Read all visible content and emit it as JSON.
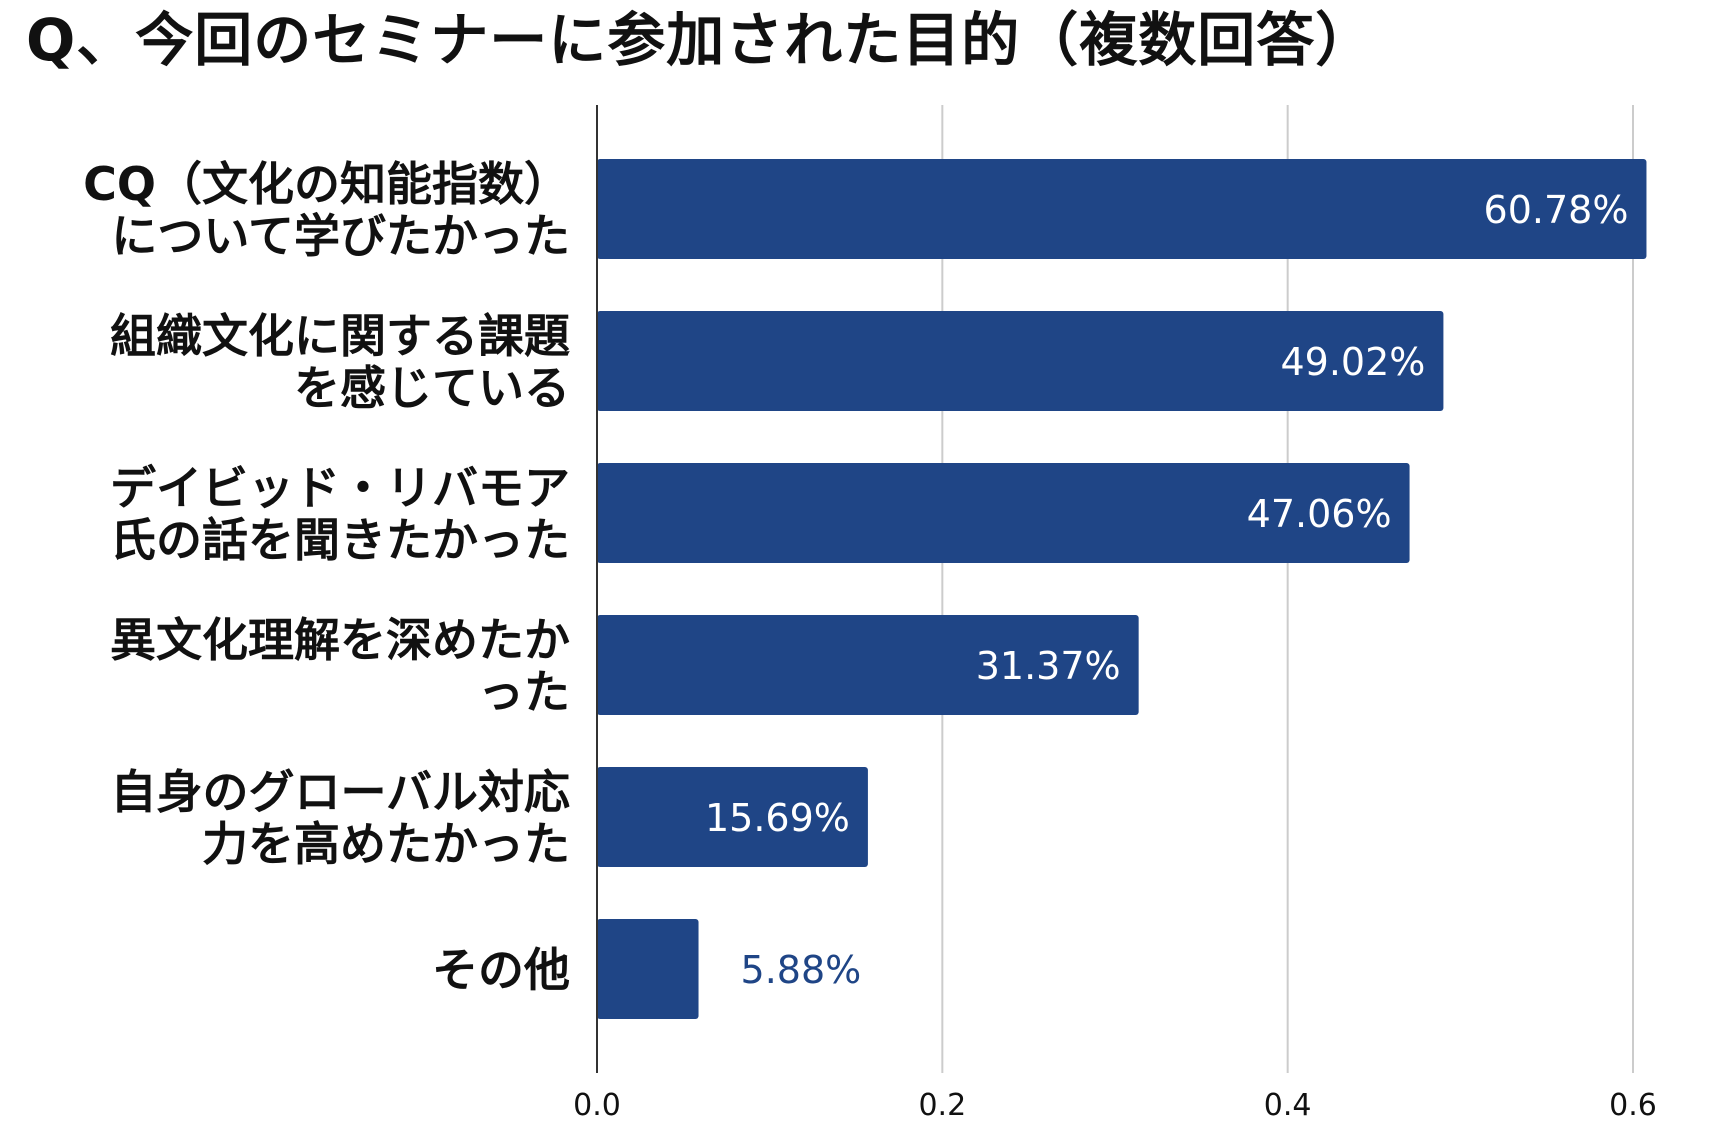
{
  "chart_data": {
    "type": "bar",
    "orientation": "horizontal",
    "title": "Q、今回のセミナーに参加された目的（複数回答）",
    "categories": [
      [
        "CQ（文化の知能指数）",
        "について学びたかった"
      ],
      [
        "組織文化に関する課題",
        "を感じている"
      ],
      [
        "デイビッド・リバモア",
        "氏の話を聞きたかった"
      ],
      [
        "異文化理解を深めたか",
        "った"
      ],
      [
        "自身のグローバル対応",
        "力を高めたかった"
      ],
      [
        "その他"
      ]
    ],
    "values": [
      0.6078,
      0.4902,
      0.4706,
      0.3137,
      0.1569,
      0.0588
    ],
    "data_labels": [
      "60.78%",
      "49.02%",
      "47.06%",
      "31.37%",
      "15.69%",
      "5.88%"
    ],
    "xlim": [
      0,
      0.6
    ],
    "x_ticks": [
      "0.0",
      "0.2",
      "0.4",
      "0.6"
    ],
    "grid": true,
    "legend": "none",
    "xlabel": "",
    "ylabel": "",
    "colors": {
      "bar": "#1f4586",
      "label_inside": "#ffffff",
      "label_outside": "#1f4586",
      "grid": "#cccccc",
      "axis": "#333333",
      "text": "#111111"
    }
  }
}
